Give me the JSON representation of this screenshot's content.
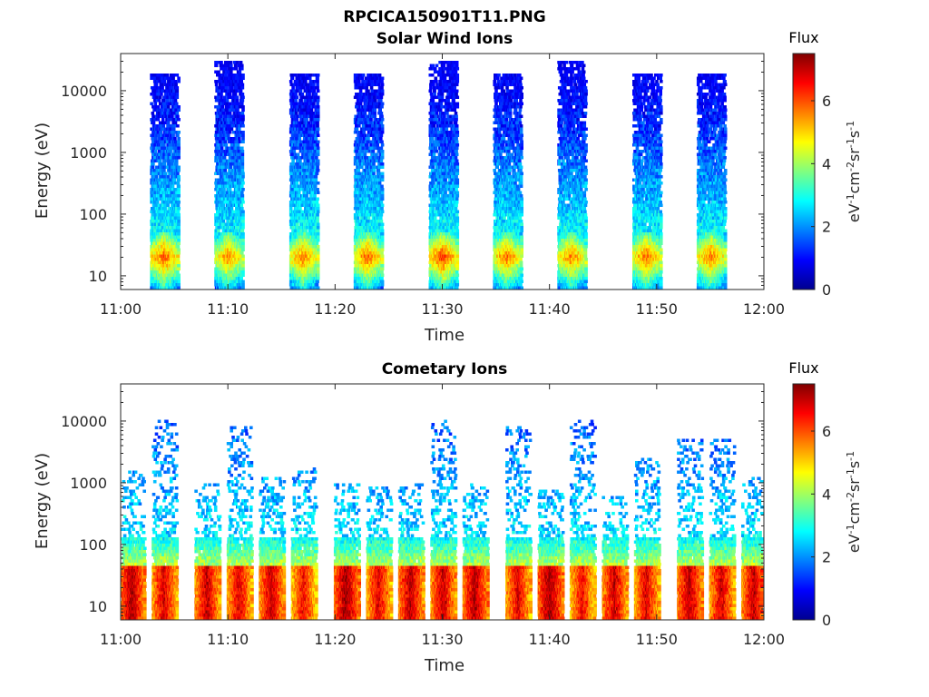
{
  "figure": {
    "title": "RPCICA150901T11.PNG"
  },
  "chart_data": [
    {
      "type": "heatmap",
      "title": "Solar Wind Ions",
      "xlabel": "Time",
      "ylabel": "Energy (eV)",
      "x_ticks": [
        "11:00",
        "11:10",
        "11:20",
        "11:30",
        "11:40",
        "11:50",
        "12:00"
      ],
      "y_ticks": [
        "10",
        "100",
        "1000",
        "10000"
      ],
      "y_scale": "log",
      "xlim": [
        "11:00",
        "12:00"
      ],
      "ylim": [
        6,
        40000
      ],
      "colorbar": {
        "title": "Flux",
        "unit": "eV-1cm-2sr-1s-1",
        "ticks": [
          "0",
          "2",
          "4",
          "6"
        ],
        "range": [
          0,
          7.5
        ],
        "colormap": "jet"
      },
      "bursts": [
        {
          "time": "11:04",
          "peak_flux": 6.0,
          "max_energy_eV": 20000
        },
        {
          "time": "11:10",
          "peak_flux": 5.6,
          "max_energy_eV": 30000
        },
        {
          "time": "11:17",
          "peak_flux": 5.8,
          "max_energy_eV": 20000
        },
        {
          "time": "11:23",
          "peak_flux": 5.9,
          "max_energy_eV": 20000
        },
        {
          "time": "11:30",
          "peak_flux": 6.2,
          "max_energy_eV": 30000
        },
        {
          "time": "11:36",
          "peak_flux": 5.8,
          "max_energy_eV": 20000
        },
        {
          "time": "11:42",
          "peak_flux": 5.7,
          "max_energy_eV": 30000
        },
        {
          "time": "11:49",
          "peak_flux": 5.9,
          "max_energy_eV": 20000
        },
        {
          "time": "11:55",
          "peak_flux": 5.8,
          "max_energy_eV": 20000
        }
      ]
    },
    {
      "type": "heatmap",
      "title": "Cometary Ions",
      "xlabel": "Time",
      "ylabel": "Energy (eV)",
      "x_ticks": [
        "11:00",
        "11:10",
        "11:20",
        "11:30",
        "11:40",
        "11:50",
        "12:00"
      ],
      "y_ticks": [
        "10",
        "100",
        "1000",
        "10000"
      ],
      "y_scale": "log",
      "xlim": [
        "11:00",
        "12:00"
      ],
      "ylim": [
        6,
        40000
      ],
      "colorbar": {
        "title": "Flux",
        "unit": "eV-1cm-2sr-1s-1",
        "ticks": [
          "0",
          "2",
          "4",
          "6"
        ],
        "range": [
          0,
          7.5
        ],
        "colormap": "jet"
      },
      "bursts": [
        {
          "time": "11:01",
          "peak_flux": 7.2,
          "max_energy_eV": 1500
        },
        {
          "time": "11:04",
          "peak_flux": 6.9,
          "max_energy_eV": 10000
        },
        {
          "time": "11:08",
          "peak_flux": 7.0,
          "max_energy_eV": 1000
        },
        {
          "time": "11:11",
          "peak_flux": 6.8,
          "max_energy_eV": 8000
        },
        {
          "time": "11:14",
          "peak_flux": 7.0,
          "max_energy_eV": 1200
        },
        {
          "time": "11:17",
          "peak_flux": 6.6,
          "max_energy_eV": 1700
        },
        {
          "time": "11:21",
          "peak_flux": 7.3,
          "max_energy_eV": 1000
        },
        {
          "time": "11:24",
          "peak_flux": 6.8,
          "max_energy_eV": 900
        },
        {
          "time": "11:27",
          "peak_flux": 7.1,
          "max_energy_eV": 1000
        },
        {
          "time": "11:30",
          "peak_flux": 7.0,
          "max_energy_eV": 11000
        },
        {
          "time": "11:33",
          "peak_flux": 7.2,
          "max_energy_eV": 1000
        },
        {
          "time": "11:37",
          "peak_flux": 6.8,
          "max_energy_eV": 8000
        },
        {
          "time": "11:40",
          "peak_flux": 7.3,
          "max_energy_eV": 800
        },
        {
          "time": "11:43",
          "peak_flux": 6.6,
          "max_energy_eV": 10000
        },
        {
          "time": "11:46",
          "peak_flux": 7.0,
          "max_energy_eV": 600
        },
        {
          "time": "11:49",
          "peak_flux": 6.8,
          "max_energy_eV": 2400
        },
        {
          "time": "11:53",
          "peak_flux": 7.1,
          "max_energy_eV": 5000
        },
        {
          "time": "11:56",
          "peak_flux": 6.9,
          "max_energy_eV": 5000
        },
        {
          "time": "11:59",
          "peak_flux": 7.0,
          "max_energy_eV": 1200
        }
      ]
    }
  ]
}
